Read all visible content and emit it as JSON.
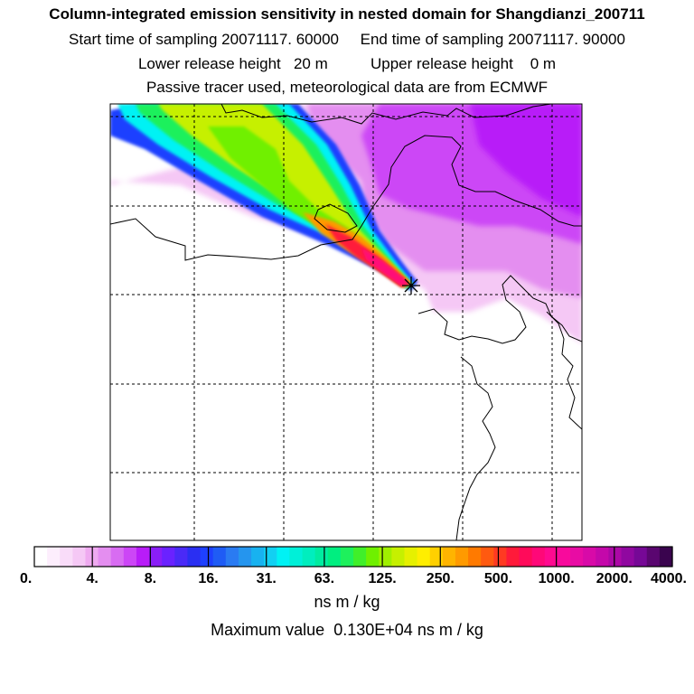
{
  "header": {
    "title": "Column-integrated emission sensitivity in nested domain for Shangdianzi_200711",
    "start_label": "Start time of sampling",
    "start_value": "20071117. 60000",
    "end_label": "End time of sampling",
    "end_value": "20071117. 90000",
    "lower_label": "Lower release height",
    "lower_value": "20 m",
    "upper_label": "Upper release height",
    "upper_value": "0 m",
    "note": "Passive tracer used, meteorological data are from ECMWF"
  },
  "chart_data": {
    "type": "heatmap",
    "title": "Column-integrated emission sensitivity in nested domain for Shangdianzi_200711",
    "colorbar": {
      "unit": "ns m / kg",
      "tick_labels": [
        "0.",
        "4.",
        "8.",
        "16.",
        "31.",
        "63.",
        "125.",
        "250.",
        "500.",
        "1000.",
        "2000.",
        "4000."
      ],
      "colors": [
        "#ffffff",
        "#fdeefd",
        "#f9dcf9",
        "#f5c8f5",
        "#efaaf0",
        "#e48ef0",
        "#d86cf2",
        "#cc46f6",
        "#b81cf8",
        "#8a1ef7",
        "#6a22ff",
        "#4a2af7",
        "#2a2ff2",
        "#1e40ff",
        "#1f5cf5",
        "#2a7bf2",
        "#2595ee",
        "#18b2f0",
        "#12d0f2",
        "#00f2f4",
        "#00f0d8",
        "#00eebe",
        "#00eca0",
        "#00ee80",
        "#1ef05c",
        "#40ef2a",
        "#6ff000",
        "#a0f000",
        "#c6f000",
        "#e6f000",
        "#ffee00",
        "#ffd000",
        "#ffb400",
        "#ff9a00",
        "#ff7a00",
        "#ff5a10",
        "#ff3a22",
        "#ff1a3a",
        "#ff0a5a",
        "#ff0878",
        "#ff0a90",
        "#f80a9c",
        "#e80ca4",
        "#d80aa8",
        "#c408aa",
        "#ac08a6",
        "#9008a0",
        "#760896",
        "#5a0670",
        "#3a044e"
      ]
    },
    "max_value_label": "Maximum value",
    "max_value": "0.130E+04",
    "max_value_unit": "ns m / kg",
    "receptor_marker": "Shangdianzi",
    "grid": true,
    "plume": {
      "description": "narrow high-sensitivity plume from north-west ending at the receptor",
      "max_level_index": 9
    }
  }
}
